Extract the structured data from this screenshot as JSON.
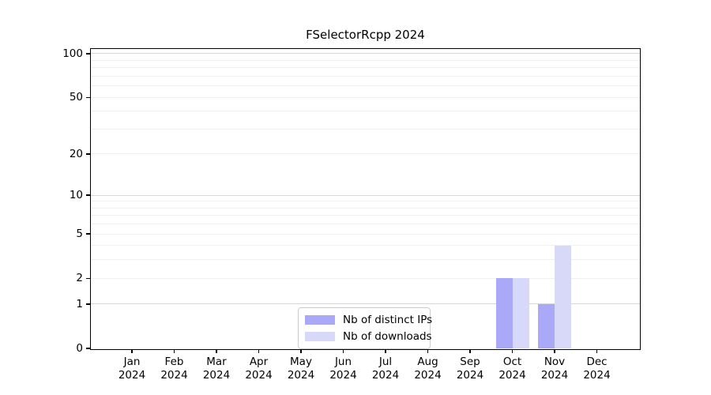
{
  "chart_data": {
    "type": "bar",
    "title": "FSelectorRcpp 2024",
    "x_tick_months": [
      "Jan",
      "Feb",
      "Mar",
      "Apr",
      "May",
      "Jun",
      "Jul",
      "Aug",
      "Sep",
      "Oct",
      "Nov",
      "Dec"
    ],
    "x_tick_year": "2024",
    "series": [
      {
        "name": "Nb of distinct IPs",
        "color": "#a9a9f8",
        "values": [
          0,
          0,
          0,
          0,
          0,
          0,
          0,
          0,
          0,
          2,
          1,
          0
        ]
      },
      {
        "name": "Nb of downloads",
        "color": "#d8d8f8",
        "values": [
          0,
          0,
          0,
          0,
          0,
          0,
          0,
          0,
          0,
          2,
          4,
          0
        ]
      }
    ],
    "y_scale": "log1p",
    "y_ticks": [
      0,
      1,
      2,
      5,
      10,
      20,
      50,
      100
    ],
    "y_gridlines_major": [
      1,
      10,
      100
    ],
    "y_gridlines_minor": [
      2,
      3,
      4,
      5,
      6,
      7,
      8,
      9,
      20,
      30,
      40,
      50,
      60,
      70,
      80,
      90
    ],
    "ylim": [
      0,
      112
    ],
    "grid": "horizontal",
    "legend_position": "lower center"
  },
  "colors": {
    "background": "#ffffff",
    "axis": "#000000",
    "text": "#000000",
    "grid_major": "#d7d7d7",
    "grid_minor": "#efefef",
    "legend_border": "#cccccc",
    "bar_distinct_ips": "#a9a9f8",
    "bar_downloads": "#d8d8f8"
  }
}
